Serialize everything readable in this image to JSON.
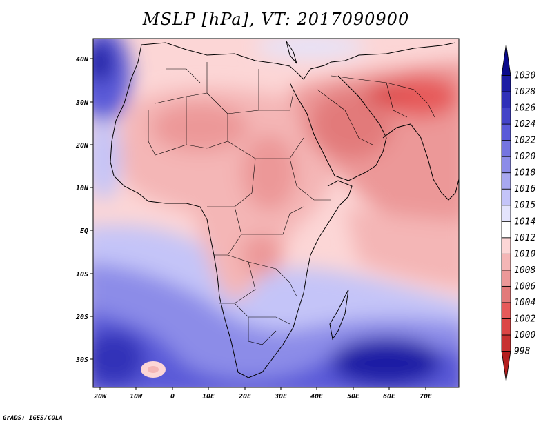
{
  "title": "MSLP [hPa], VT: 2017090900",
  "credit": "GrADS: IGES/COLA",
  "map": {
    "lon_labels": [
      "20W",
      "10W",
      "0",
      "10E",
      "20E",
      "30E",
      "40E",
      "50E",
      "60E",
      "70E"
    ],
    "lat_labels": [
      "40N",
      "30N",
      "20N",
      "10N",
      "EQ",
      "10S",
      "20S",
      "30S"
    ]
  },
  "colorbar": {
    "levels": [
      "998",
      "1000",
      "1002",
      "1004",
      "1006",
      "1008",
      "1010",
      "1012",
      "1014",
      "1015",
      "1016",
      "1018",
      "1020",
      "1022",
      "1024",
      "1026",
      "1028",
      "1030"
    ],
    "colors": [
      "#b41e1e",
      "#c83232",
      "#dc4646",
      "#e65a5a",
      "#e27a7a",
      "#ec9898",
      "#f4b6b6",
      "#fcd6d6",
      "#ffffff",
      "#e4e4fc",
      "#c4c4f8",
      "#a8a8f0",
      "#8c8ce8",
      "#7474e0",
      "#5a5ad8",
      "#4444c8",
      "#3030b8",
      "#1c1ca4",
      "#0a0a8c"
    ]
  }
}
